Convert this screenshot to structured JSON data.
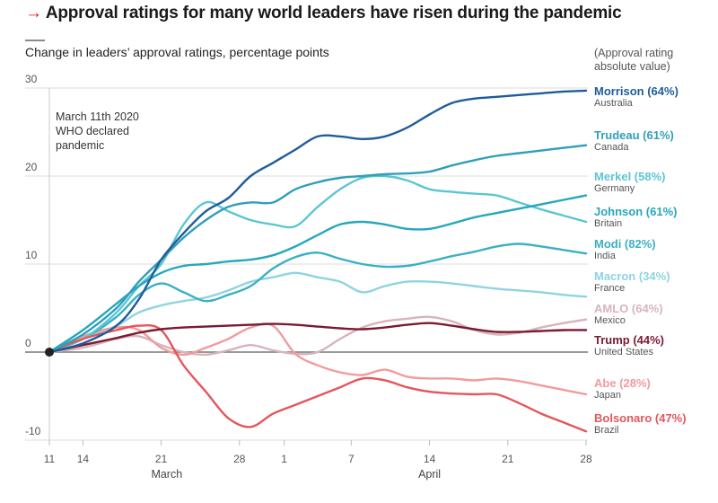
{
  "header": {
    "arrow": "→",
    "title": "Approval ratings for many world leaders have risen during the pandemic",
    "subtitle": "Change in leaders’ approval ratings, percentage points",
    "abs_note_line1": "(Approval rating",
    "abs_note_line2": "absolute value)"
  },
  "chart_data": {
    "type": "line",
    "title": "Approval ratings for many world leaders have risen during the pandemic",
    "subtitle": "Change in leaders’ approval ratings, percentage points",
    "xlabel": "",
    "ylabel": "Change in approval rating (percentage points)",
    "ylim": [
      -10,
      30
    ],
    "yticks": [
      -10,
      0,
      10,
      20,
      30
    ],
    "grid": true,
    "x_unit": "days since March 11th 2020",
    "xlim": [
      0,
      48
    ],
    "xticks": [
      {
        "day": 0,
        "label": "11"
      },
      {
        "day": 3,
        "label": "14"
      },
      {
        "day": 10,
        "label": "21"
      },
      {
        "day": 17,
        "label": "28"
      },
      {
        "day": 21,
        "label": "1"
      },
      {
        "day": 27,
        "label": "7"
      },
      {
        "day": 34,
        "label": "14"
      },
      {
        "day": 41,
        "label": "21"
      },
      {
        "day": 48,
        "label": "28"
      }
    ],
    "months": [
      {
        "day": 10.5,
        "label": "March"
      },
      {
        "day": 34,
        "label": "April"
      }
    ],
    "annotation": {
      "day": 0,
      "lines": [
        "March 11th 2020",
        "WHO declared",
        "pandemic"
      ]
    },
    "x": [
      0,
      3,
      6,
      8,
      10,
      12,
      14,
      16,
      18,
      20,
      22,
      24,
      26,
      28,
      30,
      32,
      34,
      36,
      38,
      40,
      42,
      44,
      46,
      48
    ],
    "series": [
      {
        "name": "Morrison",
        "country": "Australia",
        "abs": "(64%)",
        "color": "#1f5c99",
        "values": [
          0,
          1.0,
          3.0,
          6.0,
          10.5,
          13.5,
          16.0,
          17.5,
          20.0,
          21.5,
          23.0,
          24.5,
          24.5,
          24.2,
          24.5,
          25.5,
          27.0,
          28.3,
          28.8,
          29.0,
          29.2,
          29.4,
          29.6,
          29.7
        ]
      },
      {
        "name": "Trudeau",
        "country": "Canada",
        "abs": "(61%)",
        "color": "#2f9fba",
        "values": [
          0,
          2.0,
          5.0,
          8.0,
          10.5,
          13.0,
          15.0,
          16.5,
          17.0,
          17.0,
          18.5,
          19.3,
          19.8,
          20.0,
          20.2,
          20.3,
          20.5,
          21.2,
          21.8,
          22.3,
          22.6,
          22.9,
          23.2,
          23.5
        ]
      },
      {
        "name": "Merkel",
        "country": "Germany",
        "abs": "(58%)",
        "color": "#5bc6d2",
        "values": [
          0,
          1.5,
          4.5,
          7.5,
          10.0,
          14.5,
          17.0,
          16.0,
          15.0,
          14.5,
          14.3,
          16.5,
          18.5,
          19.8,
          20.0,
          19.5,
          18.5,
          18.2,
          18.0,
          17.8,
          17.0,
          16.2,
          15.5,
          14.8
        ]
      },
      {
        "name": "Johnson",
        "country": "Britain",
        "abs": "(61%)",
        "color": "#26a7bd",
        "values": [
          0,
          2.5,
          5.5,
          7.5,
          9.0,
          9.8,
          10.0,
          10.3,
          10.5,
          11.0,
          12.0,
          13.3,
          14.5,
          14.8,
          14.5,
          14.0,
          14.0,
          14.6,
          15.3,
          15.8,
          16.3,
          16.8,
          17.3,
          17.8
        ]
      },
      {
        "name": "Modi",
        "country": "India",
        "abs": "(82%)",
        "color": "#3bb0c4",
        "values": [
          0,
          1.5,
          4.0,
          6.5,
          7.8,
          6.8,
          5.8,
          6.5,
          7.5,
          9.5,
          10.8,
          11.3,
          10.6,
          10.0,
          9.7,
          9.8,
          10.3,
          10.9,
          11.4,
          12.0,
          12.3,
          12.0,
          11.6,
          11.2
        ]
      },
      {
        "name": "Macron",
        "country": "France",
        "abs": "(34%)",
        "color": "#8fd4df",
        "values": [
          0,
          1.5,
          3.0,
          4.5,
          5.3,
          5.8,
          6.2,
          7.0,
          8.0,
          8.5,
          9.0,
          8.5,
          8.0,
          6.8,
          7.5,
          8.0,
          8.0,
          7.8,
          7.5,
          7.2,
          7.0,
          6.8,
          6.5,
          6.3
        ]
      },
      {
        "name": "AMLO",
        "country": "Mexico",
        "abs": "(64%)",
        "color": "#d7b4bd",
        "values": [
          0,
          0.5,
          1.5,
          1.8,
          0.8,
          0.0,
          -0.3,
          0.2,
          0.8,
          0.2,
          -0.2,
          0.0,
          1.5,
          2.8,
          3.5,
          3.8,
          4.0,
          3.5,
          2.5,
          2.0,
          2.2,
          2.8,
          3.3,
          3.7
        ]
      },
      {
        "name": "Trump",
        "country": "United States",
        "abs": "(44%)",
        "color": "#7b1a33",
        "values": [
          0,
          0.8,
          1.6,
          2.2,
          2.6,
          2.8,
          2.9,
          3.0,
          3.1,
          3.2,
          3.1,
          2.9,
          2.7,
          2.6,
          2.8,
          3.1,
          3.3,
          3.0,
          2.6,
          2.3,
          2.3,
          2.4,
          2.5,
          2.5
        ]
      },
      {
        "name": "Abe",
        "country": "Japan",
        "abs": "(28%)",
        "color": "#f29b9b",
        "values": [
          0,
          1.8,
          2.8,
          2.5,
          0.5,
          -0.3,
          0.5,
          1.5,
          2.8,
          3.0,
          -0.2,
          -1.5,
          -2.3,
          -2.6,
          -2.0,
          -2.8,
          -3.0,
          -3.0,
          -3.2,
          -3.0,
          -3.3,
          -3.8,
          -4.3,
          -4.8
        ]
      },
      {
        "name": "Bolsonaro",
        "country": "Brazil",
        "abs": "(47%)",
        "color": "#e4565c",
        "values": [
          0,
          1.5,
          2.5,
          3.0,
          2.5,
          -1.5,
          -4.5,
          -7.5,
          -8.5,
          -7.0,
          -6.0,
          -5.0,
          -4.0,
          -3.0,
          -3.2,
          -4.0,
          -4.5,
          -4.7,
          -4.8,
          -4.8,
          -5.8,
          -7.0,
          -8.0,
          -9.0
        ]
      }
    ]
  }
}
